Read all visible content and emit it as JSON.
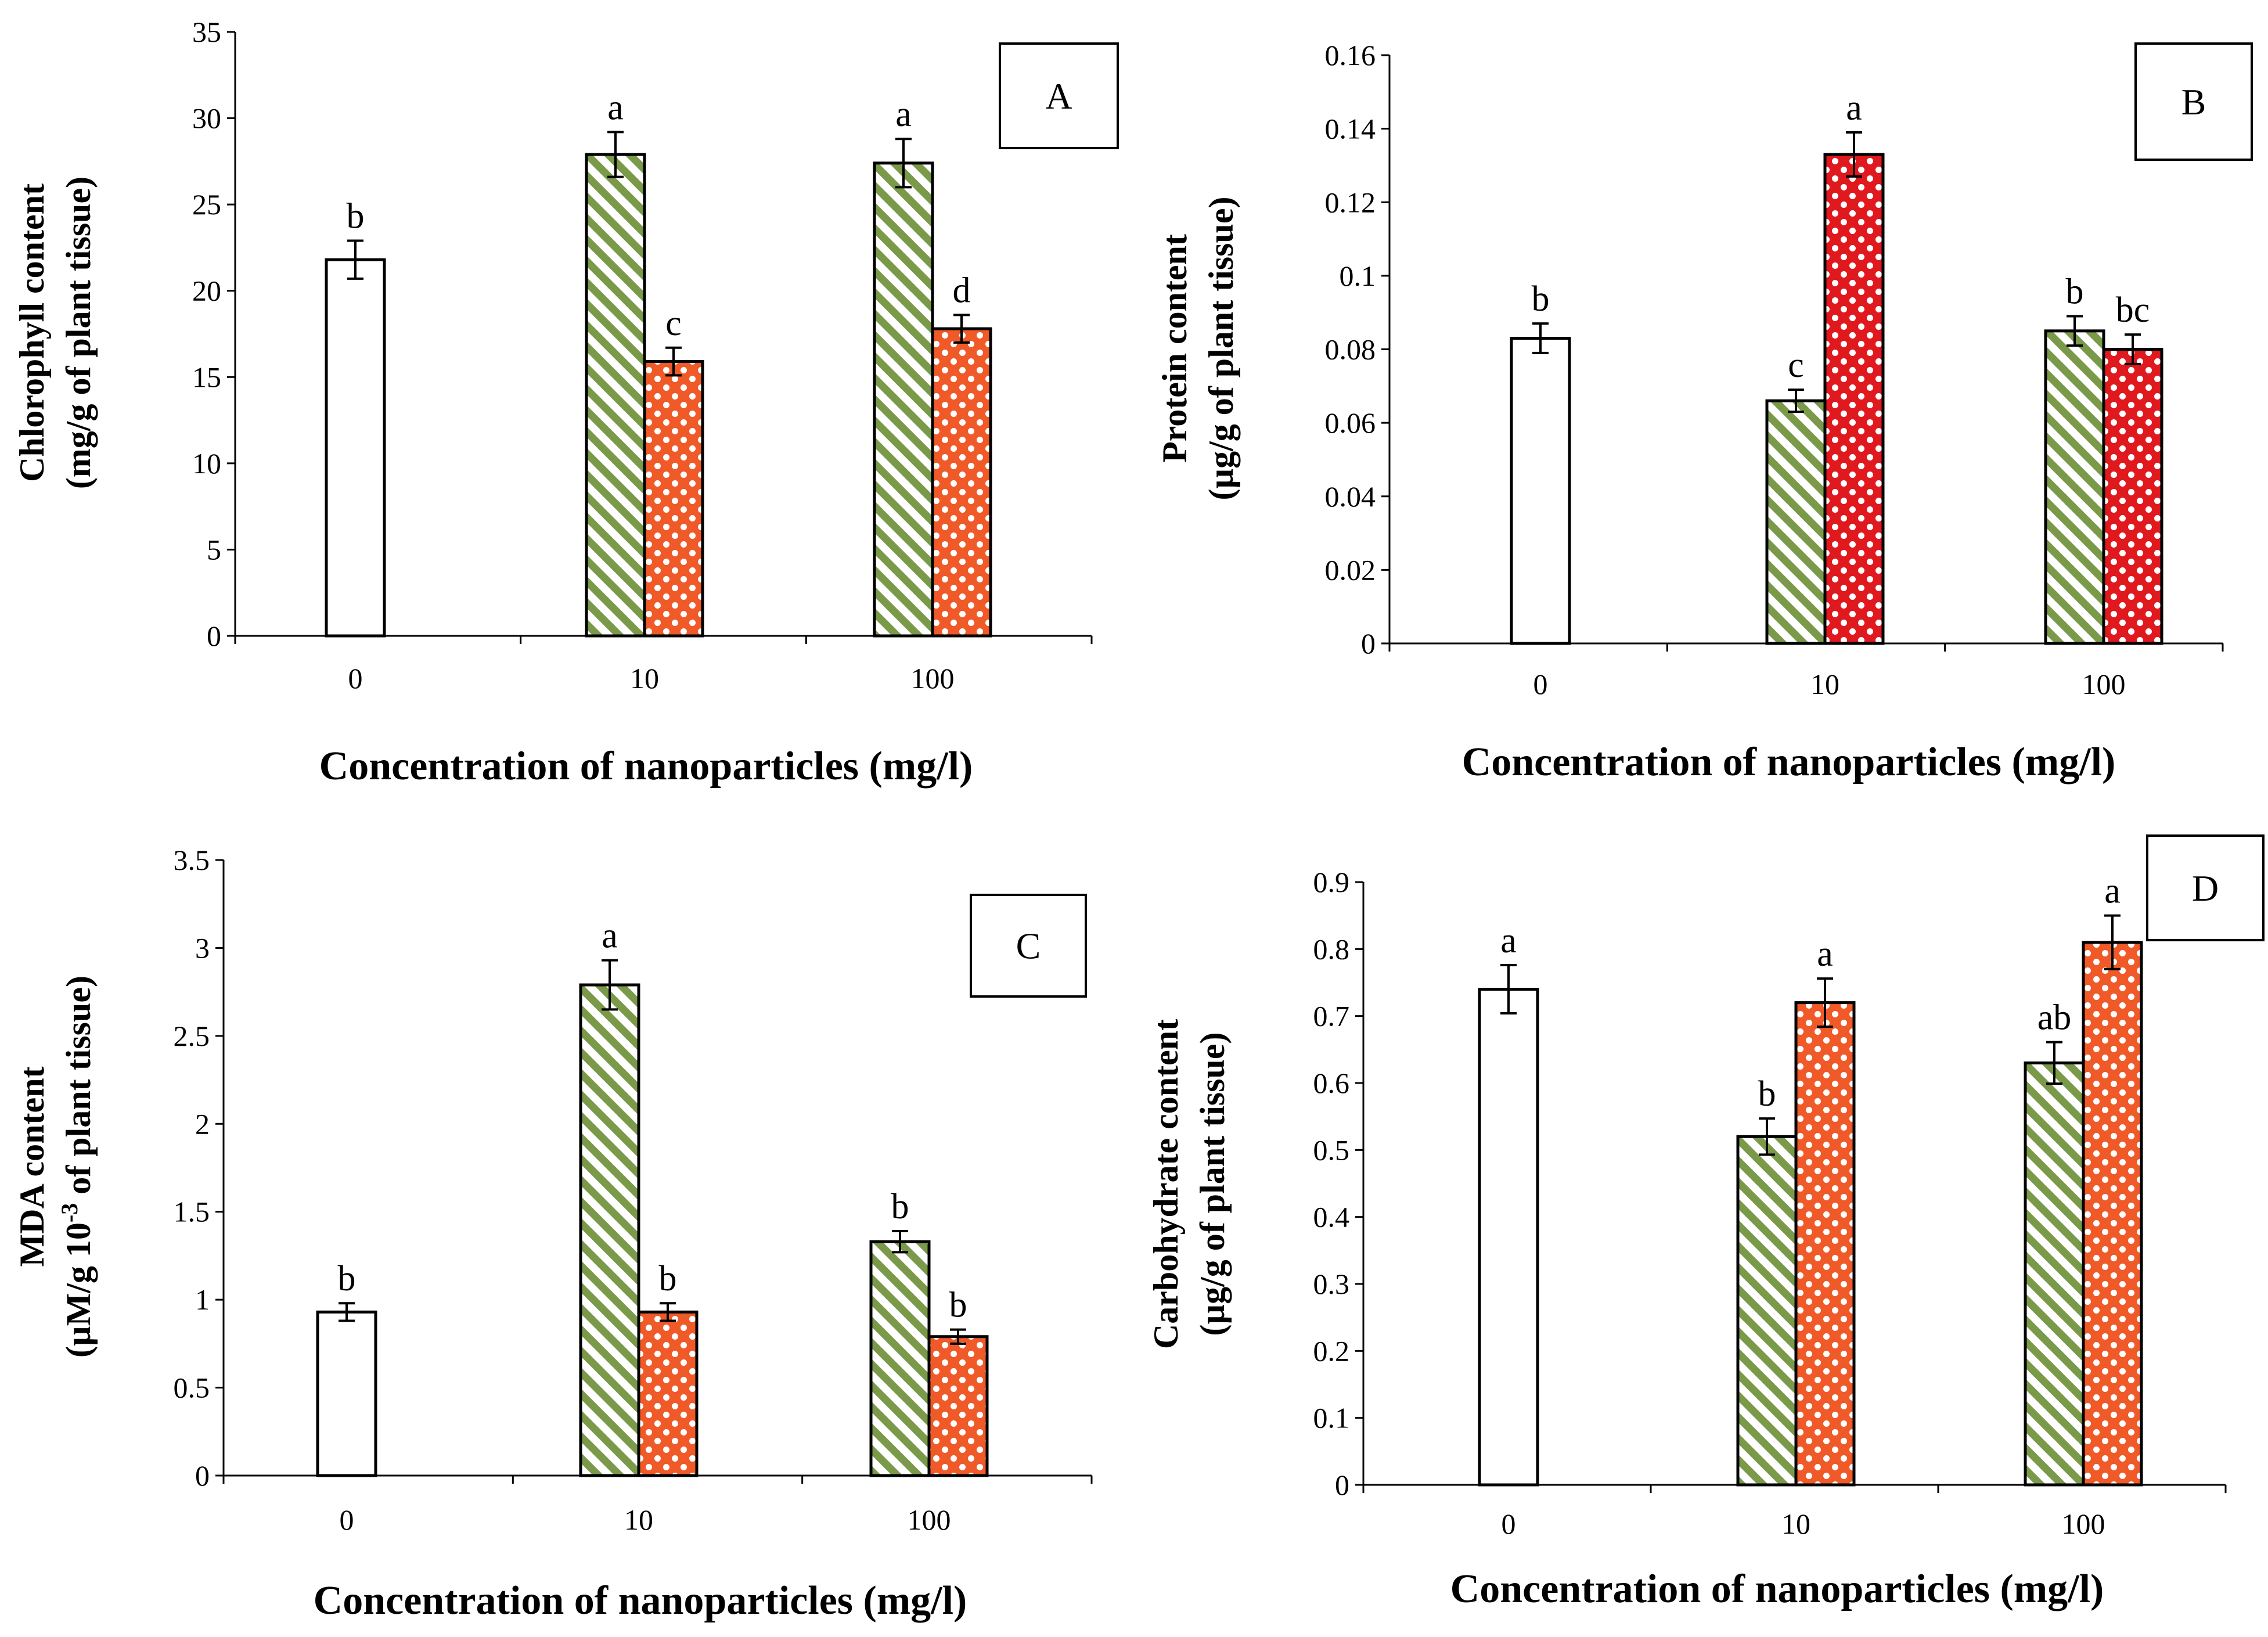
{
  "colors": {
    "control_fill": "#ffffff",
    "stripe_green": "#7a9a4a",
    "dots_red_a": "#f05a28",
    "dots_red_b": "#e0191f",
    "axis": "#000000"
  },
  "chart_data": [
    {
      "type": "bar",
      "panel": "A",
      "categories": [
        "0",
        "10",
        "100"
      ],
      "xlabel": "Concentration of nanoparticles (mg/l)",
      "ylabel_line1": "Chlorophyll content",
      "ylabel_line2": "(mg/g of plant tissue)",
      "ylim": [
        0,
        35
      ],
      "yticks": [
        "0",
        "5",
        "10",
        "15",
        "20",
        "25",
        "30",
        "35"
      ],
      "series": [
        {
          "name": "control",
          "pattern": "plain",
          "values": [
            21.8,
            null,
            null
          ],
          "errors": [
            1.1,
            null,
            null
          ],
          "letters": [
            "b",
            null,
            null
          ]
        },
        {
          "name": "stripe",
          "pattern": "stripe",
          "values": [
            null,
            27.9,
            27.4
          ],
          "errors": [
            null,
            1.3,
            1.4
          ],
          "letters": [
            null,
            "a",
            "a"
          ]
        },
        {
          "name": "dots",
          "pattern": "dots_a",
          "values": [
            null,
            15.9,
            17.8
          ],
          "errors": [
            null,
            0.8,
            0.8
          ],
          "letters": [
            null,
            "c",
            "d"
          ]
        }
      ]
    },
    {
      "type": "bar",
      "panel": "B",
      "categories": [
        "0",
        "10",
        "100"
      ],
      "xlabel": "Concentration of nanoparticles (mg/l)",
      "ylabel_line1": "Protein content",
      "ylabel_line2": "(µg/g of plant tissue)",
      "ylim": [
        0,
        0.16
      ],
      "yticks": [
        "0",
        "0.02",
        "0.04",
        "0.06",
        "0.08",
        "0.1",
        "0.12",
        "0.14",
        "0.16"
      ],
      "series": [
        {
          "name": "control",
          "pattern": "plain",
          "values": [
            0.083,
            null,
            null
          ],
          "errors": [
            0.004,
            null,
            null
          ],
          "letters": [
            "b",
            null,
            null
          ]
        },
        {
          "name": "stripe",
          "pattern": "stripe",
          "values": [
            null,
            0.066,
            0.085
          ],
          "errors": [
            null,
            0.003,
            0.004
          ],
          "letters": [
            null,
            "c",
            "b"
          ]
        },
        {
          "name": "dots",
          "pattern": "dots_b",
          "values": [
            null,
            0.133,
            0.08
          ],
          "errors": [
            null,
            0.006,
            0.004
          ],
          "letters": [
            null,
            "a",
            "bc"
          ]
        }
      ]
    },
    {
      "type": "bar",
      "panel": "C",
      "categories": [
        "0",
        "10",
        "100"
      ],
      "xlabel": "Concentration of nanoparticles (mg/l)",
      "ylabel_line1": "MDA content",
      "ylabel_line2": "(µM/g 10-3 of plant tissue)",
      "ylim": [
        0,
        3.5
      ],
      "yticks": [
        "0",
        "0.5",
        "1",
        "1.5",
        "2",
        "2.5",
        "3",
        "3.5"
      ],
      "series": [
        {
          "name": "control",
          "pattern": "plain",
          "values": [
            0.93,
            null,
            null
          ],
          "errors": [
            0.05,
            null,
            null
          ],
          "letters": [
            "b",
            null,
            null
          ]
        },
        {
          "name": "stripe",
          "pattern": "stripe",
          "values": [
            null,
            2.79,
            1.33
          ],
          "errors": [
            null,
            0.14,
            0.06
          ],
          "letters": [
            null,
            "a",
            "b"
          ]
        },
        {
          "name": "dots",
          "pattern": "dots_a",
          "values": [
            null,
            0.93,
            0.79
          ],
          "errors": [
            null,
            0.05,
            0.04
          ],
          "letters": [
            null,
            "b",
            "b"
          ]
        }
      ]
    },
    {
      "type": "bar",
      "panel": "D",
      "categories": [
        "0",
        "10",
        "100"
      ],
      "xlabel": "Concentration of nanoparticles (mg/l)",
      "ylabel_line1": "Carbohydrate content",
      "ylabel_line2": "(µg/g of plant tissue)",
      "ylim": [
        0,
        0.9
      ],
      "yticks": [
        "0",
        "0.1",
        "0.2",
        "0.3",
        "0.4",
        "0.5",
        "0.6",
        "0.7",
        "0.8",
        "0.9"
      ],
      "series": [
        {
          "name": "control",
          "pattern": "plain",
          "values": [
            0.74,
            null,
            null
          ],
          "errors": [
            0.036,
            null,
            null
          ],
          "letters": [
            "a",
            null,
            null
          ]
        },
        {
          "name": "stripe",
          "pattern": "stripe",
          "values": [
            null,
            0.52,
            0.63
          ],
          "errors": [
            null,
            0.027,
            0.031
          ],
          "letters": [
            null,
            "b",
            "ab"
          ]
        },
        {
          "name": "dots",
          "pattern": "dots_a",
          "values": [
            null,
            0.72,
            0.81
          ],
          "errors": [
            null,
            0.036,
            0.04
          ],
          "letters": [
            null,
            "a",
            "a"
          ]
        }
      ]
    }
  ]
}
